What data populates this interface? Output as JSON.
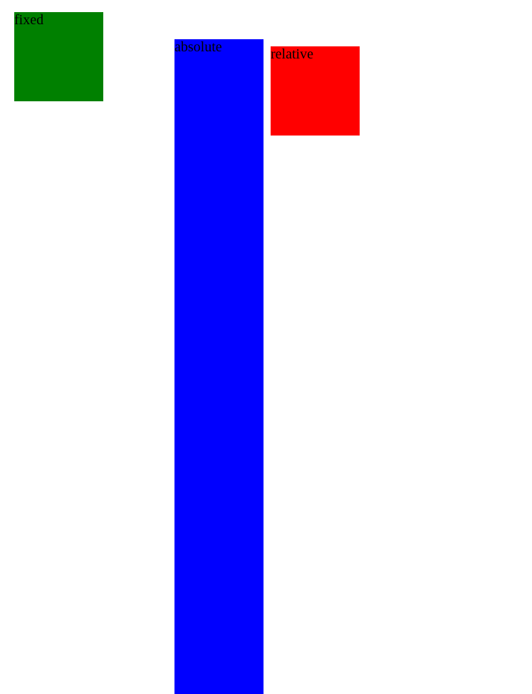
{
  "boxes": {
    "fixed": {
      "label": "fixed",
      "color": "#008000"
    },
    "absolute": {
      "label": "absolute",
      "color": "#0000ff"
    },
    "relative": {
      "label": "relative",
      "color": "#ff0000"
    }
  }
}
